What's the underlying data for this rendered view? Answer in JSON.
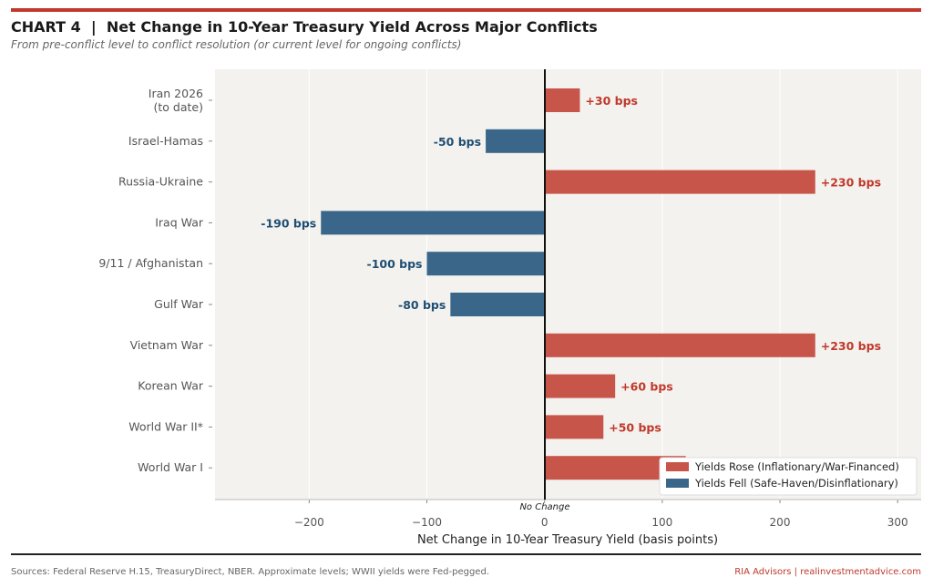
{
  "header": {
    "title": "CHART 4  |  Net Change in 10-Year Treasury Yield Across Major Conflicts",
    "subtitle": "From pre-conflict level to conflict resolution (or current level for ongoing conflicts)"
  },
  "footer": {
    "sources": "Sources: Federal Reserve H.15, TreasuryDirect, NBER. Approximate levels; WWII yields were Fed-pegged.",
    "brand": "RIA Advisors | realinvestmentadvice.com"
  },
  "colors": {
    "rose": "#c8554a",
    "fell": "#3a6789",
    "accent": "#c0392b",
    "plot_bg": "#f3f2ee"
  },
  "chart_data": {
    "type": "bar",
    "orientation": "horizontal",
    "title": "CHART 4  |  Net Change in 10-Year Treasury Yield Across Major Conflicts",
    "xlabel": "Net Change in 10-Year Treasury Yield (basis points)",
    "xlim": [
      -280,
      320
    ],
    "xticks": [
      -200,
      -100,
      0,
      100,
      200,
      300
    ],
    "xtick_labels": [
      "−200",
      "−100",
      "0",
      "100",
      "200",
      "300"
    ],
    "zero_annotation": "No Change",
    "grid": "x",
    "legend_position": "lower-right",
    "legend": [
      "Yields Rose (Inflationary/War-Financed)",
      "Yields Fell (Safe-Haven/Disinflationary)"
    ],
    "categories": [
      "Iran 2026\n(to date)",
      "Israel-Hamas",
      "Russia-Ukraine",
      "Iraq War",
      "9/11 / Afghanistan",
      "Gulf War",
      "Vietnam War",
      "Korean War",
      "World War II*",
      "World War I"
    ],
    "values": [
      30,
      -50,
      230,
      -190,
      -100,
      -80,
      230,
      60,
      50,
      120
    ],
    "labels": [
      "+30 bps",
      "-50 bps",
      "+230 bps",
      "-190 bps",
      "-100 bps",
      "-80 bps",
      "+230 bps",
      "+60 bps",
      "+50 bps",
      ""
    ]
  }
}
